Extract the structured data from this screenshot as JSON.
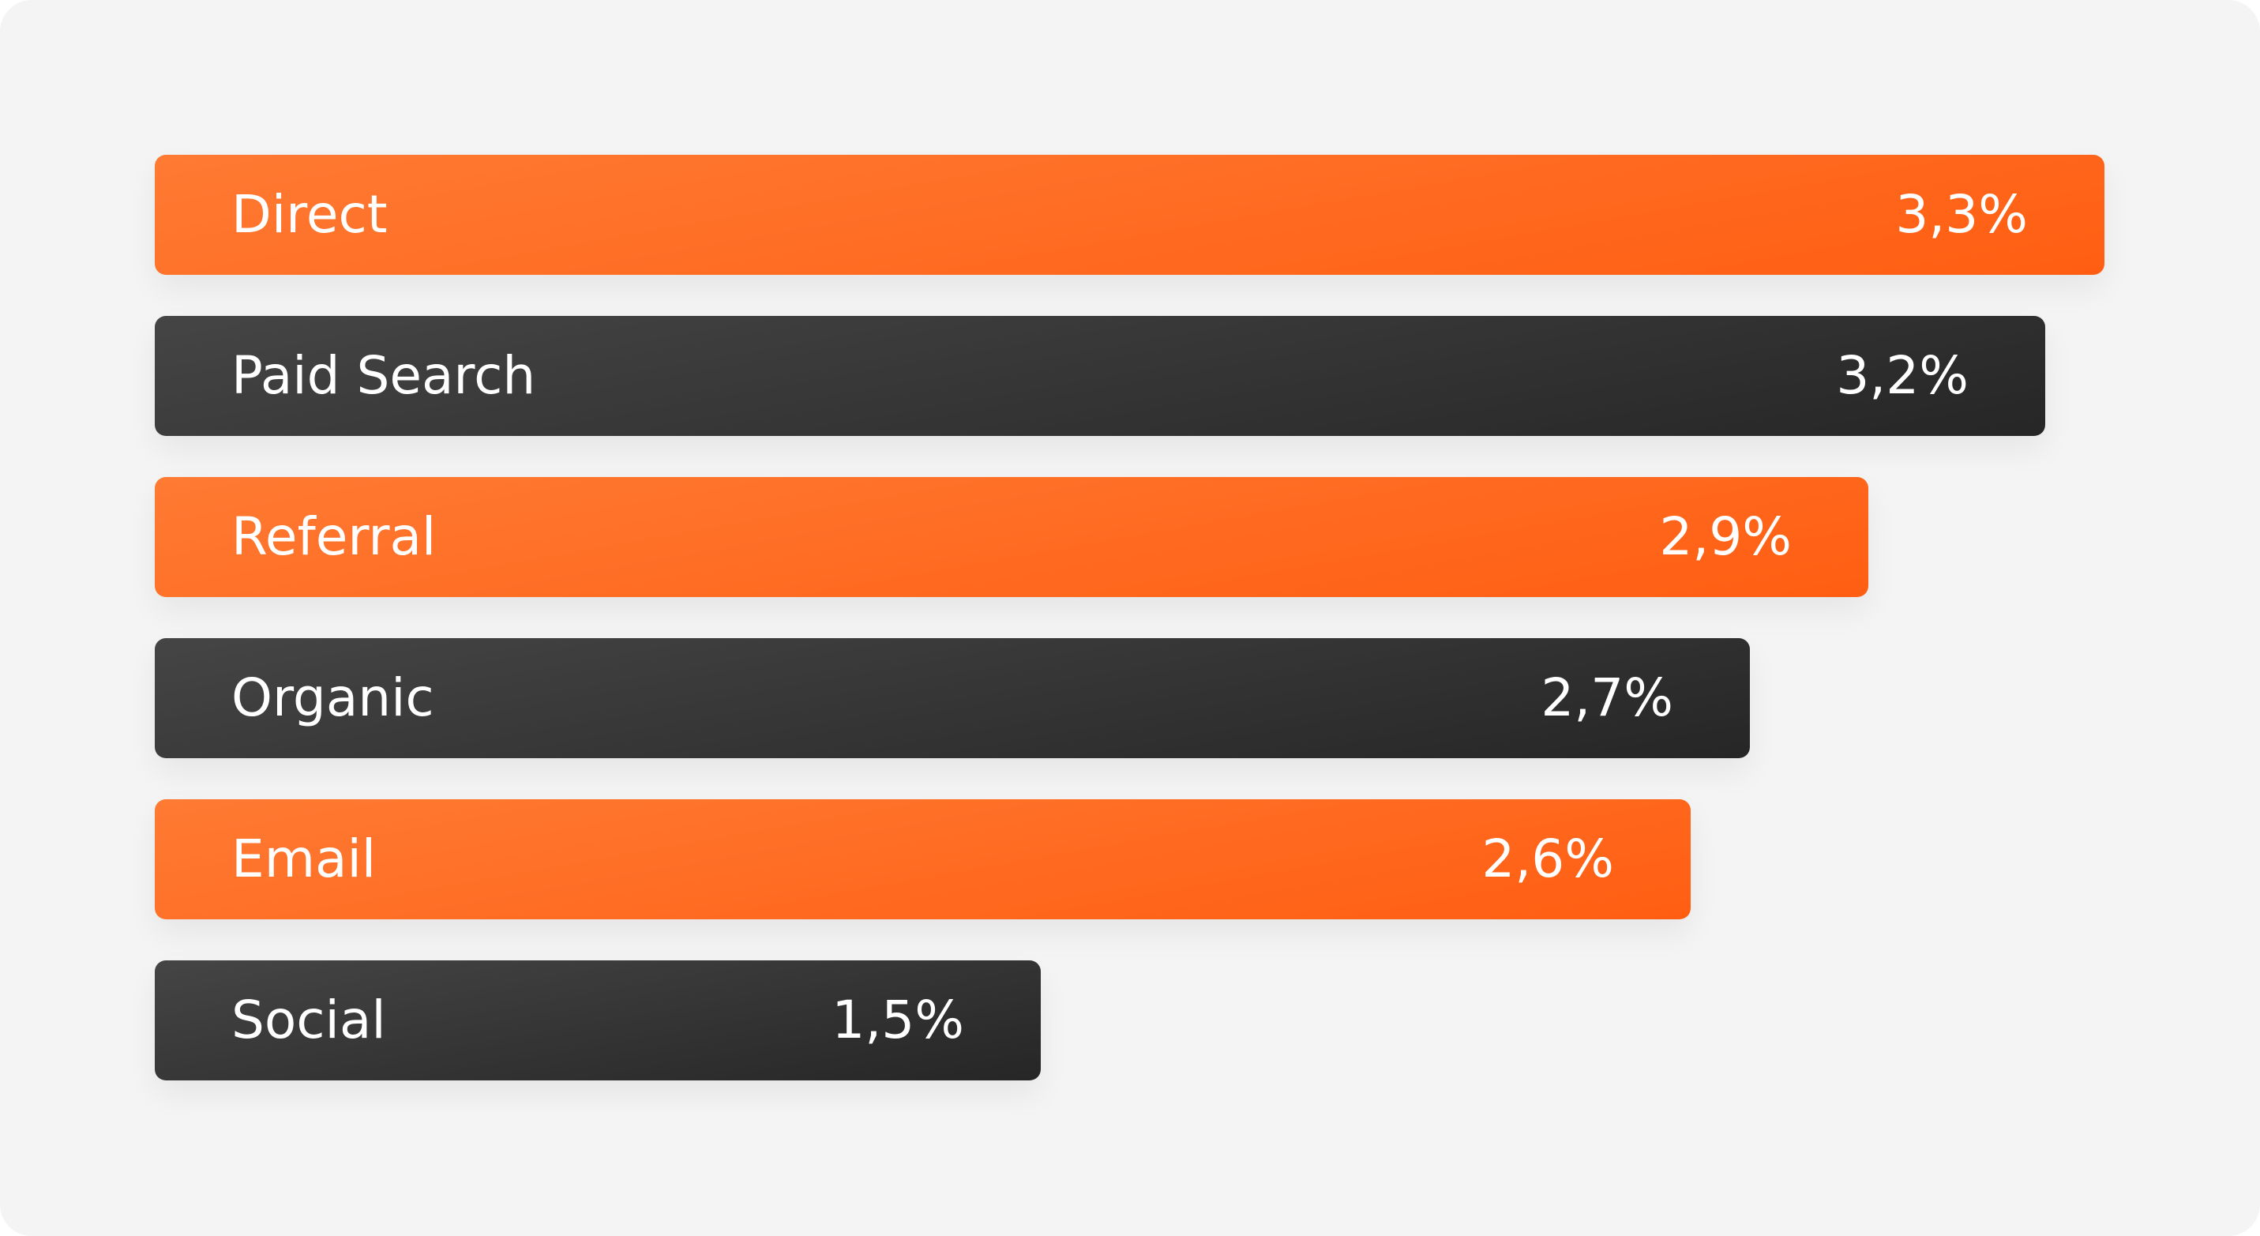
{
  "chart_data": {
    "type": "bar",
    "orientation": "horizontal",
    "categories": [
      "Direct",
      "Paid Search",
      "Referral",
      "Organic",
      "Email",
      "Social"
    ],
    "values": [
      3.3,
      3.2,
      2.9,
      2.7,
      2.6,
      1.5
    ],
    "value_labels": [
      "3,3%",
      "3,2%",
      "2,9%",
      "2,7%",
      "2,6%",
      "1,5%"
    ],
    "unit": "%",
    "colors": [
      "#ff6a1f",
      "#333333",
      "#ff6a1f",
      "#333333",
      "#ff6a1f",
      "#333333"
    ],
    "color_pattern": "alternating orange and dark",
    "xlim": [
      0,
      3.3
    ],
    "grid": false,
    "legend": "none"
  },
  "colors": {
    "background": "#f4f4f4",
    "orange": "#ff6a1f",
    "dark": "#333333",
    "text": "#ffffff"
  }
}
